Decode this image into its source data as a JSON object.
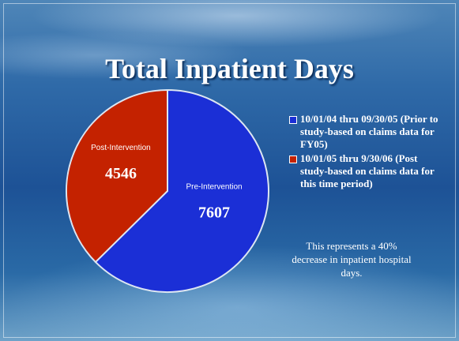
{
  "chart_data": {
    "type": "pie",
    "title": "Total Inpatient Days",
    "categories": [
      "Pre-Intervention",
      "Post-Intervention"
    ],
    "values": [
      7607,
      4546
    ],
    "colors": [
      "#1b2fd6",
      "#c42200"
    ],
    "legend": [
      "10/01/04 thru 09/30/05 (Prior to study-based on claims data for FY05)",
      "10/01/05 thru 9/30/06 (Post study-based on claims data for this time period)"
    ],
    "annotation": "This represents a 40% decrease in inpatient hospital days."
  }
}
